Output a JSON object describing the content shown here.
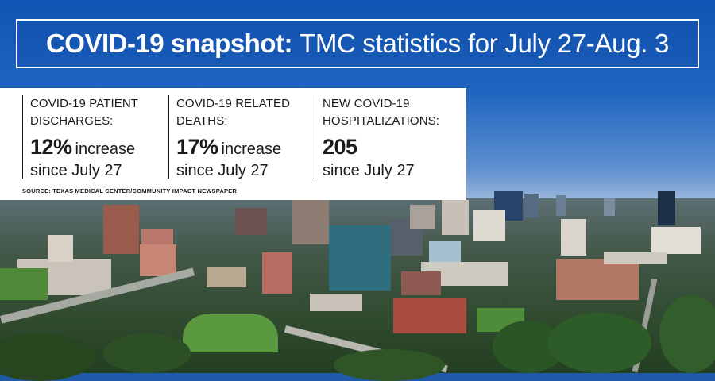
{
  "banner": {
    "title_bold": "COVID-19 snapshot:",
    "title_rest": "TMC statistics for July 27-Aug. 3"
  },
  "stats": [
    {
      "label": "COVID-19 PATIENT DISCHARGES:",
      "value": "12%",
      "qualifier": "increase",
      "period": "since July 27"
    },
    {
      "label": "COVID-19 RELATED DEATHS:",
      "value": "17%",
      "qualifier": "increase",
      "period": "since July 27"
    },
    {
      "label": "NEW COVID-19 HOSPITALIZATIONS:",
      "value": "205",
      "qualifier": "",
      "period": "since July 27"
    }
  ],
  "source": "SOURCE: TEXAS MEDICAL CENTER/COMMUNITY IMPACT NEWSPAPER",
  "colors": {
    "sky_blue": "#0f55b3",
    "panel_white": "#ffffff",
    "text_dark": "#1a1a1a"
  }
}
